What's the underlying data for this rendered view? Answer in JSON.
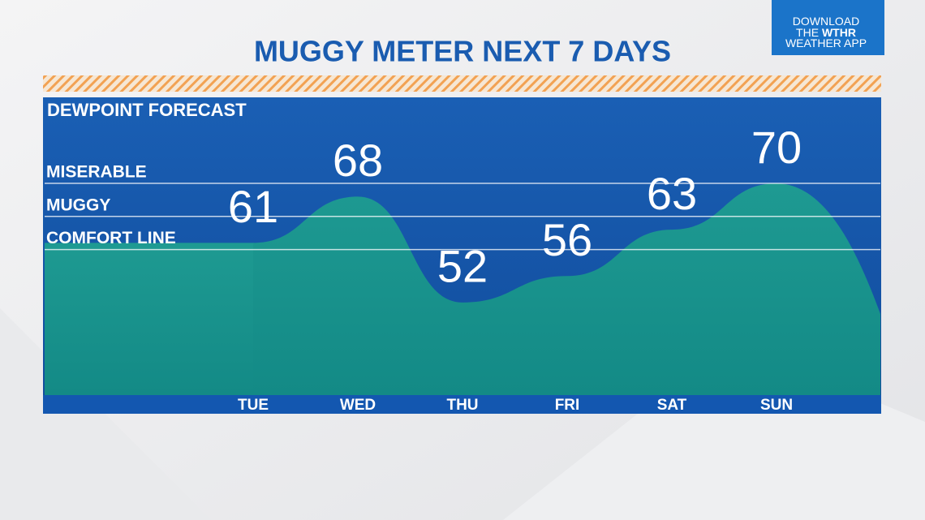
{
  "badge": {
    "line1": "DOWNLOAD",
    "line2a": "THE",
    "line2b": "WTHR",
    "line3": "WEATHER APP"
  },
  "chart_data": {
    "type": "area",
    "title": "MUGGY METER NEXT 7 DAYS",
    "subtitle": "DEWPOINT FORECAST",
    "categories": [
      "TUE",
      "WED",
      "THU",
      "FRI",
      "SAT",
      "SUN"
    ],
    "values": [
      61,
      68,
      52,
      56,
      63,
      70
    ],
    "color": "#16908e",
    "ylim": [
      38,
      83
    ],
    "yticks": [
      {
        "value": 60,
        "label": "COMFORT LINE"
      },
      {
        "value": 65,
        "label": "MUGGY"
      },
      {
        "value": 70,
        "label": "MISERABLE"
      }
    ],
    "grid": true
  }
}
